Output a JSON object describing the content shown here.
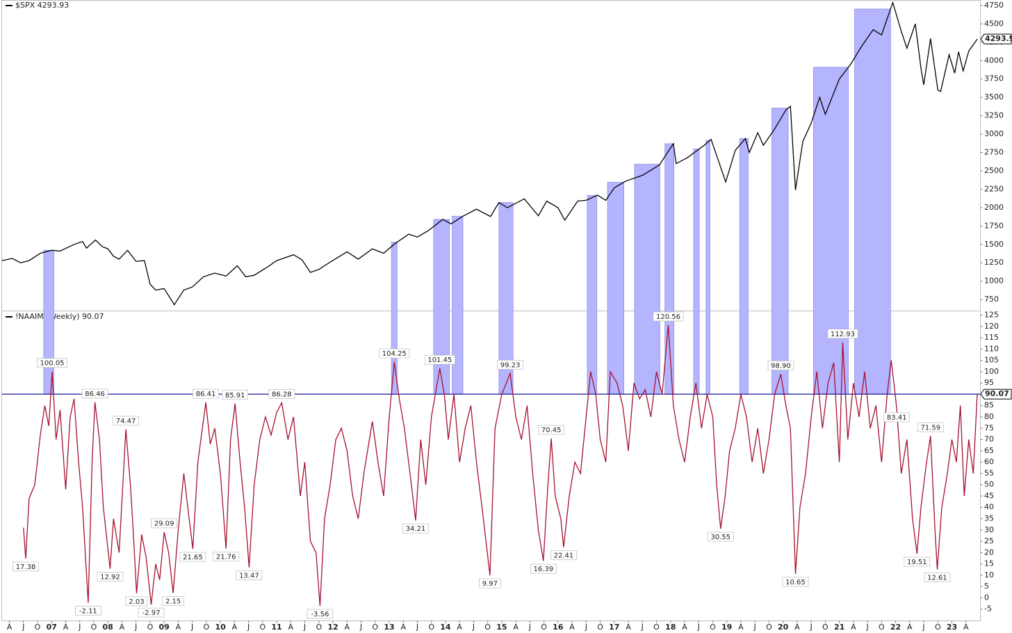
{
  "chart_data": [
    {
      "type": "line",
      "title": "$SPX 4293.93",
      "color": "#000000",
      "xlim": [
        2006.12,
        2023.5
      ],
      "ylim": [
        600,
        4825
      ],
      "yticks": [
        750,
        1000,
        1250,
        1500,
        1750,
        2000,
        2250,
        2500,
        2750,
        3000,
        3250,
        3500,
        3750,
        4000,
        4250,
        4500,
        4750
      ],
      "highlight_color": "#b4b4ff",
      "highlights": [
        [
          2006.86,
          2007.04
        ],
        [
          2013.04,
          2013.14
        ],
        [
          2013.79,
          2014.07
        ],
        [
          2014.12,
          2014.31
        ],
        [
          2014.95,
          2015.2
        ],
        [
          2016.52,
          2016.69
        ],
        [
          2016.88,
          2017.17
        ],
        [
          2017.36,
          2017.81
        ],
        [
          2017.9,
          2018.06
        ],
        [
          2018.41,
          2018.51
        ],
        [
          2018.63,
          2018.7
        ],
        [
          2019.23,
          2019.38
        ],
        [
          2019.8,
          2020.09
        ],
        [
          2020.54,
          2021.16
        ],
        [
          2021.27,
          2021.91
        ]
      ],
      "x": [
        2006.12,
        2006.3,
        2006.45,
        2006.6,
        2006.8,
        2007.0,
        2007.15,
        2007.4,
        2007.55,
        2007.62,
        2007.78,
        2007.9,
        2008.0,
        2008.1,
        2008.2,
        2008.35,
        2008.5,
        2008.65,
        2008.75,
        2008.85,
        2009.0,
        2009.18,
        2009.35,
        2009.5,
        2009.7,
        2009.9,
        2010.1,
        2010.3,
        2010.45,
        2010.6,
        2010.85,
        2011.0,
        2011.3,
        2011.45,
        2011.6,
        2011.75,
        2011.95,
        2012.25,
        2012.45,
        2012.7,
        2012.9,
        2013.1,
        2013.35,
        2013.5,
        2013.7,
        2013.95,
        2014.1,
        2014.3,
        2014.55,
        2014.8,
        2014.95,
        2015.1,
        2015.4,
        2015.65,
        2015.8,
        2016.0,
        2016.12,
        2016.35,
        2016.5,
        2016.7,
        2016.85,
        2017.0,
        2017.2,
        2017.5,
        2017.8,
        2018.05,
        2018.1,
        2018.3,
        2018.6,
        2018.72,
        2018.85,
        2018.98,
        2019.15,
        2019.33,
        2019.4,
        2019.55,
        2019.65,
        2019.85,
        2020.05,
        2020.13,
        2020.22,
        2020.35,
        2020.5,
        2020.65,
        2020.75,
        2021.0,
        2021.2,
        2021.4,
        2021.6,
        2021.75,
        2021.95,
        2022.1,
        2022.2,
        2022.35,
        2022.45,
        2022.5,
        2022.62,
        2022.75,
        2022.8,
        2022.95,
        2023.05,
        2023.12,
        2023.2,
        2023.3,
        2023.45
      ],
      "values": [
        1280,
        1310,
        1250,
        1280,
        1380,
        1420,
        1410,
        1500,
        1540,
        1450,
        1560,
        1470,
        1440,
        1340,
        1300,
        1420,
        1270,
        1280,
        960,
        880,
        900,
        680,
        880,
        920,
        1060,
        1110,
        1070,
        1210,
        1060,
        1080,
        1200,
        1280,
        1360,
        1290,
        1120,
        1160,
        1260,
        1400,
        1300,
        1440,
        1380,
        1510,
        1640,
        1600,
        1690,
        1840,
        1780,
        1880,
        1980,
        1880,
        2070,
        2000,
        2120,
        1890,
        2090,
        2000,
        1830,
        2090,
        2100,
        2170,
        2100,
        2270,
        2360,
        2440,
        2580,
        2870,
        2600,
        2680,
        2850,
        2930,
        2640,
        2350,
        2780,
        2940,
        2750,
        3020,
        2850,
        3070,
        3330,
        3380,
        2240,
        2900,
        3150,
        3500,
        3270,
        3750,
        3950,
        4200,
        4420,
        4350,
        4790,
        4400,
        4170,
        4500,
        3900,
        3670,
        4300,
        3600,
        3580,
        4080,
        3830,
        4120,
        3860,
        4130,
        4293.93
      ]
    },
    {
      "type": "line",
      "title": "!NAAIM (Weekly) 90.07",
      "color": "#a5102e",
      "hline_color": "#1a1a9c",
      "xlim": [
        2006.12,
        2023.5
      ],
      "ylim": [
        -10,
        127
      ],
      "yticks": [
        -5,
        0,
        5,
        10,
        15,
        20,
        25,
        30,
        35,
        40,
        45,
        50,
        55,
        60,
        65,
        70,
        75,
        80,
        85,
        90,
        95,
        100,
        105,
        110,
        115,
        120,
        125
      ],
      "xticks": [
        {
          "value": 2006.25,
          "label": "A"
        },
        {
          "value": 2006.5,
          "label": "J"
        },
        {
          "value": 2006.75,
          "label": "O"
        },
        {
          "value": 2007,
          "label": "07"
        },
        {
          "value": 2007.25,
          "label": "A"
        },
        {
          "value": 2007.5,
          "label": "J"
        },
        {
          "value": 2007.75,
          "label": "O"
        },
        {
          "value": 2008,
          "label": "08"
        },
        {
          "value": 2008.25,
          "label": "A"
        },
        {
          "value": 2008.5,
          "label": "J"
        },
        {
          "value": 2008.75,
          "label": "O"
        },
        {
          "value": 2009,
          "label": "09"
        },
        {
          "value": 2009.25,
          "label": "A"
        },
        {
          "value": 2009.5,
          "label": "J"
        },
        {
          "value": 2009.75,
          "label": "O"
        },
        {
          "value": 2010,
          "label": "10"
        },
        {
          "value": 2010.25,
          "label": "A"
        },
        {
          "value": 2010.5,
          "label": "J"
        },
        {
          "value": 2010.75,
          "label": "O"
        },
        {
          "value": 2011,
          "label": "11"
        },
        {
          "value": 2011.25,
          "label": "A"
        },
        {
          "value": 2011.5,
          "label": "J"
        },
        {
          "value": 2011.75,
          "label": "O"
        },
        {
          "value": 2012,
          "label": "12"
        },
        {
          "value": 2012.25,
          "label": "A"
        },
        {
          "value": 2012.5,
          "label": "J"
        },
        {
          "value": 2012.75,
          "label": "O"
        },
        {
          "value": 2013,
          "label": "13"
        },
        {
          "value": 2013.25,
          "label": "A"
        },
        {
          "value": 2013.5,
          "label": "J"
        },
        {
          "value": 2013.75,
          "label": "O"
        },
        {
          "value": 2014,
          "label": "14"
        },
        {
          "value": 2014.25,
          "label": "A"
        },
        {
          "value": 2014.5,
          "label": "J"
        },
        {
          "value": 2014.75,
          "label": "O"
        },
        {
          "value": 2015,
          "label": "15"
        },
        {
          "value": 2015.25,
          "label": "A"
        },
        {
          "value": 2015.5,
          "label": "J"
        },
        {
          "value": 2015.75,
          "label": "O"
        },
        {
          "value": 2016,
          "label": "16"
        },
        {
          "value": 2016.25,
          "label": "A"
        },
        {
          "value": 2016.5,
          "label": "J"
        },
        {
          "value": 2016.75,
          "label": "O"
        },
        {
          "value": 2017,
          "label": "17"
        },
        {
          "value": 2017.25,
          "label": "A"
        },
        {
          "value": 2017.5,
          "label": "J"
        },
        {
          "value": 2017.75,
          "label": "O"
        },
        {
          "value": 2018,
          "label": "18"
        },
        {
          "value": 2018.25,
          "label": "A"
        },
        {
          "value": 2018.5,
          "label": "J"
        },
        {
          "value": 2018.75,
          "label": "O"
        },
        {
          "value": 2019,
          "label": "19"
        },
        {
          "value": 2019.25,
          "label": "A"
        },
        {
          "value": 2019.5,
          "label": "J"
        },
        {
          "value": 2019.75,
          "label": "O"
        },
        {
          "value": 2020,
          "label": "20"
        },
        {
          "value": 2020.25,
          "label": "A"
        },
        {
          "value": 2020.5,
          "label": "J"
        },
        {
          "value": 2020.75,
          "label": "O"
        },
        {
          "value": 2021,
          "label": "21"
        },
        {
          "value": 2021.25,
          "label": "A"
        },
        {
          "value": 2021.5,
          "label": "J"
        },
        {
          "value": 2021.75,
          "label": "O"
        },
        {
          "value": 2022,
          "label": "22"
        },
        {
          "value": 2022.25,
          "label": "A"
        },
        {
          "value": 2022.5,
          "label": "J"
        },
        {
          "value": 2022.75,
          "label": "O"
        },
        {
          "value": 2023,
          "label": "23"
        },
        {
          "value": 2023.25,
          "label": "A"
        }
      ],
      "x": [
        2006.5,
        2006.54,
        2006.6,
        2006.7,
        2006.8,
        2006.88,
        2006.95,
        2007.01,
        2007.08,
        2007.15,
        2007.25,
        2007.33,
        2007.4,
        2007.48,
        2007.55,
        2007.65,
        2007.72,
        2007.77,
        2007.85,
        2007.92,
        2008.04,
        2008.1,
        2008.2,
        2008.32,
        2008.4,
        2008.45,
        2008.51,
        2008.6,
        2008.68,
        2008.77,
        2008.85,
        2008.92,
        2009.0,
        2009.08,
        2009.16,
        2009.25,
        2009.35,
        2009.42,
        2009.51,
        2009.6,
        2009.74,
        2009.82,
        2009.9,
        2010.0,
        2010.1,
        2010.18,
        2010.26,
        2010.35,
        2010.43,
        2010.51,
        2010.6,
        2010.7,
        2010.8,
        2010.9,
        2011.0,
        2011.09,
        2011.2,
        2011.3,
        2011.42,
        2011.5,
        2011.6,
        2011.7,
        2011.77,
        2011.85,
        2011.95,
        2012.05,
        2012.15,
        2012.25,
        2012.35,
        2012.45,
        2012.55,
        2012.7,
        2012.8,
        2012.9,
        2013.0,
        2013.09,
        2013.18,
        2013.27,
        2013.37,
        2013.47,
        2013.56,
        2013.65,
        2013.75,
        2013.9,
        2013.98,
        2014.05,
        2014.15,
        2014.25,
        2014.35,
        2014.45,
        2014.55,
        2014.65,
        2014.79,
        2014.88,
        2015.0,
        2015.15,
        2015.25,
        2015.35,
        2015.45,
        2015.55,
        2015.65,
        2015.74,
        2015.82,
        2015.88,
        2015.95,
        2016.05,
        2016.1,
        2016.2,
        2016.3,
        2016.4,
        2016.5,
        2016.58,
        2016.67,
        2016.75,
        2016.85,
        2016.93,
        2017.05,
        2017.15,
        2017.25,
        2017.35,
        2017.45,
        2017.55,
        2017.65,
        2017.75,
        2017.85,
        2017.96,
        2018.05,
        2018.15,
        2018.25,
        2018.35,
        2018.45,
        2018.55,
        2018.65,
        2018.75,
        2018.82,
        2018.89,
        2018.97,
        2019.05,
        2019.15,
        2019.25,
        2019.35,
        2019.45,
        2019.55,
        2019.65,
        2019.75,
        2019.85,
        2019.96,
        2020.05,
        2020.13,
        2020.22,
        2020.3,
        2020.4,
        2020.5,
        2020.6,
        2020.7,
        2020.8,
        2020.9,
        2021.0,
        2021.06,
        2021.15,
        2021.25,
        2021.35,
        2021.45,
        2021.55,
        2021.65,
        2021.75,
        2021.85,
        2021.92,
        2021.97,
        2022.02,
        2022.1,
        2022.2,
        2022.3,
        2022.38,
        2022.45,
        2022.55,
        2022.62,
        2022.7,
        2022.74,
        2022.82,
        2022.92,
        2023.0,
        2023.08,
        2023.15,
        2023.22,
        2023.3,
        2023.38,
        2023.45
      ],
      "values": [
        31,
        17.38,
        44,
        50,
        72,
        85,
        76,
        100.05,
        70,
        83,
        48,
        80,
        88,
        60,
        40,
        -2.11,
        60,
        86.46,
        70,
        40,
        12.92,
        35,
        20,
        74.47,
        50,
        30,
        2.03,
        28,
        18,
        -2.97,
        15,
        8,
        29.09,
        20,
        2.15,
        30,
        55,
        40,
        21.65,
        60,
        86.41,
        68,
        75,
        55,
        21.76,
        70,
        85.91,
        60,
        40,
        13.47,
        50,
        70,
        80,
        72,
        82,
        86.28,
        70,
        80,
        45,
        60,
        25,
        20,
        -3.56,
        35,
        50,
        70,
        75,
        65,
        45,
        35,
        55,
        78,
        60,
        45,
        80,
        104.25,
        88,
        75,
        55,
        34.21,
        70,
        50,
        80,
        101.45,
        90,
        70,
        90,
        60,
        75,
        85,
        60,
        40,
        9.97,
        75,
        90,
        99.23,
        80,
        70,
        85,
        55,
        30,
        16.39,
        50,
        70.45,
        45,
        35,
        22.41,
        45,
        60,
        55,
        80,
        100,
        90,
        70,
        60,
        100,
        95,
        85,
        65,
        95,
        88,
        92,
        80,
        100,
        90,
        120.56,
        85,
        70,
        60,
        80,
        95,
        75,
        90,
        80,
        50,
        30.55,
        45,
        65,
        75,
        90,
        80,
        60,
        75,
        55,
        70,
        90,
        98.9,
        85,
        75,
        10.65,
        40,
        55,
        80,
        100,
        75,
        95,
        104,
        60,
        112.93,
        70,
        95,
        80,
        100,
        75,
        85,
        60,
        90,
        105,
        95,
        83.41,
        55,
        70,
        35,
        19.51,
        40,
        60,
        71.59,
        30,
        12.61,
        40,
        55,
        70,
        60,
        85,
        45,
        70,
        55,
        90.07
      ],
      "value_labels": [
        null,
        "17.38",
        null,
        null,
        null,
        null,
        null,
        "100.05",
        null,
        null,
        null,
        null,
        null,
        null,
        null,
        "-2.11",
        null,
        "86.46",
        null,
        null,
        "12.92",
        null,
        null,
        "74.47",
        null,
        null,
        "2.03",
        null,
        null,
        "-2.97",
        null,
        null,
        "29.09",
        null,
        "2.15",
        null,
        null,
        null,
        "21.65",
        null,
        "86.41",
        null,
        null,
        null,
        "21.76",
        null,
        "85.91",
        null,
        null,
        "13.47",
        null,
        null,
        null,
        null,
        null,
        "86.28",
        null,
        null,
        null,
        null,
        null,
        null,
        "-3.56",
        null,
        null,
        null,
        null,
        null,
        null,
        null,
        null,
        null,
        null,
        null,
        null,
        "104.25",
        null,
        null,
        null,
        "34.21",
        null,
        null,
        null,
        "101.45",
        null,
        null,
        null,
        null,
        null,
        null,
        null,
        null,
        "9.97",
        null,
        null,
        "99.23",
        null,
        null,
        null,
        null,
        null,
        "16.39",
        null,
        "70.45",
        null,
        null,
        "22.41",
        null,
        null,
        null,
        null,
        null,
        null,
        null,
        null,
        null,
        null,
        null,
        null,
        null,
        null,
        null,
        null,
        null,
        null,
        "120.56",
        null,
        null,
        null,
        null,
        null,
        null,
        null,
        null,
        null,
        "30.55",
        null,
        null,
        null,
        null,
        null,
        null,
        null,
        null,
        null,
        null,
        "98.90",
        null,
        null,
        "10.65",
        null,
        null,
        null,
        null,
        null,
        null,
        null,
        null,
        "112.93",
        null,
        null,
        null,
        null,
        null,
        null,
        null,
        null,
        null,
        null,
        "83.41",
        null,
        null,
        null,
        "19.51",
        null,
        null,
        "71.59",
        null,
        "12.61",
        null,
        null,
        null,
        null,
        null,
        null,
        null,
        null,
        null
      ]
    }
  ]
}
